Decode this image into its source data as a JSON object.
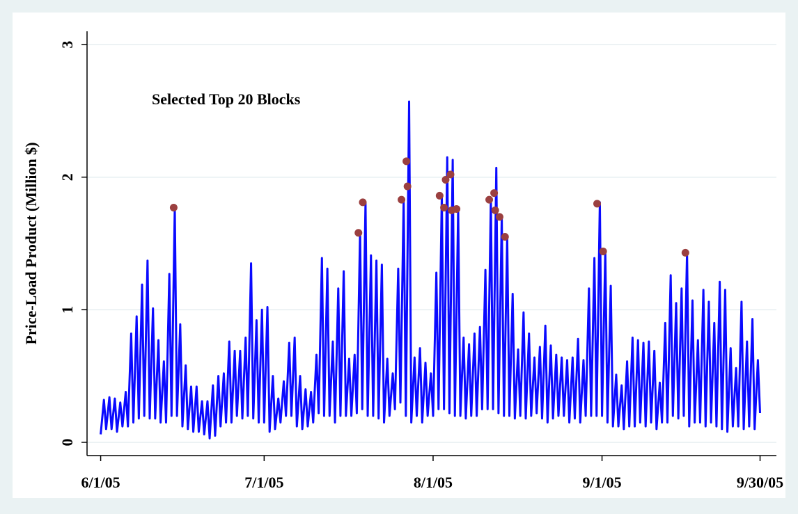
{
  "chart_data": {
    "type": "line",
    "ylabel": "Price-Load Product (Million $)",
    "annotation": "Selected Top 20 Blocks",
    "annotation_color": "#9b1c2e",
    "xlim": [
      -2.5,
      124
    ],
    "ylim": [
      -0.1,
      3.1
    ],
    "xticks": [
      {
        "value": 0,
        "label": "6/1/05"
      },
      {
        "value": 30,
        "label": "7/1/05"
      },
      {
        "value": 61,
        "label": "8/1/05"
      },
      {
        "value": 92,
        "label": "9/1/05"
      },
      {
        "value": 121,
        "label": "9/30/05"
      }
    ],
    "yticks": [
      0,
      1,
      2,
      3
    ],
    "grid": true,
    "line": {
      "color": "#0a0aff",
      "x": [
        0,
        0.6,
        1,
        1.6,
        2,
        2.6,
        3,
        3.6,
        4,
        4.6,
        5,
        5.6,
        6,
        6.6,
        7,
        7.6,
        8,
        8.6,
        9,
        9.6,
        10,
        10.6,
        11,
        11.6,
        12,
        12.6,
        13,
        13.6,
        14,
        14.6,
        15,
        15.6,
        16,
        16.6,
        17,
        17.6,
        18,
        18.6,
        19,
        19.6,
        20,
        20.6,
        21,
        21.6,
        22,
        22.6,
        23,
        23.6,
        24,
        24.6,
        25,
        25.6,
        26,
        26.6,
        27,
        27.6,
        28,
        28.6,
        29,
        29.6,
        30,
        30.6,
        31,
        31.6,
        32,
        32.6,
        33,
        33.6,
        34,
        34.6,
        35,
        35.6,
        36,
        36.6,
        37,
        37.6,
        38,
        38.6,
        39,
        39.6,
        40,
        40.6,
        41,
        41.6,
        42,
        42.6,
        43,
        43.6,
        44,
        44.6,
        45,
        45.6,
        46,
        46.6,
        47,
        47.6,
        48,
        48.6,
        49,
        49.6,
        50,
        50.6,
        51,
        51.6,
        52,
        52.6,
        53,
        53.6,
        54,
        54.6,
        55,
        55.6,
        56,
        56.6,
        57,
        57.6,
        58,
        58.6,
        59,
        59.6,
        60,
        60.6,
        61,
        61.6,
        62,
        62.6,
        63,
        63.6,
        64,
        64.6,
        65,
        65.6,
        66,
        66.6,
        67,
        67.6,
        68,
        68.6,
        69,
        69.6,
        70,
        70.6,
        71,
        71.6,
        72,
        72.6,
        73,
        73.6,
        74,
        74.6,
        75,
        75.6,
        76,
        76.6,
        77,
        77.6,
        78,
        78.6,
        79,
        79.6,
        80,
        80.6,
        81,
        81.6,
        82,
        82.6,
        83,
        83.6,
        84,
        84.6,
        85,
        85.6,
        86,
        86.6,
        87,
        87.6,
        88,
        88.6,
        89,
        89.6,
        90,
        90.6,
        91,
        91.6,
        92,
        92.6,
        93,
        93.6,
        94,
        94.6,
        95,
        95.6,
        96,
        96.6,
        97,
        97.6,
        98,
        98.6,
        99,
        99.6,
        100,
        100.6,
        101,
        101.6,
        102,
        102.6,
        103,
        103.6,
        104,
        104.6,
        105,
        105.6,
        106,
        106.6,
        107,
        107.6,
        108,
        108.6,
        109,
        109.6,
        110,
        110.6,
        111,
        111.6,
        112,
        112.6,
        113,
        113.6,
        114,
        114.6,
        115,
        115.6,
        116,
        116.6,
        117,
        117.6,
        118,
        118.6,
        119,
        119.6,
        120,
        120.6,
        121
      ],
      "values": [
        0.06,
        0.32,
        0.1,
        0.34,
        0.1,
        0.33,
        0.08,
        0.3,
        0.12,
        0.38,
        0.12,
        0.82,
        0.15,
        0.95,
        0.18,
        1.19,
        0.2,
        1.37,
        0.18,
        1.01,
        0.18,
        0.77,
        0.15,
        0.61,
        0.15,
        1.27,
        0.2,
        1.77,
        0.2,
        0.89,
        0.12,
        0.58,
        0.1,
        0.42,
        0.08,
        0.42,
        0.08,
        0.31,
        0.06,
        0.31,
        0.03,
        0.43,
        0.05,
        0.5,
        0.12,
        0.52,
        0.15,
        0.76,
        0.15,
        0.69,
        0.2,
        0.69,
        0.18,
        0.79,
        0.2,
        1.35,
        0.18,
        0.92,
        0.15,
        1.0,
        0.15,
        1.02,
        0.08,
        0.5,
        0.1,
        0.33,
        0.15,
        0.46,
        0.2,
        0.75,
        0.2,
        0.79,
        0.12,
        0.5,
        0.1,
        0.4,
        0.12,
        0.38,
        0.15,
        0.66,
        0.22,
        1.39,
        0.2,
        1.31,
        0.2,
        0.76,
        0.15,
        1.16,
        0.2,
        1.29,
        0.2,
        0.63,
        0.2,
        0.66,
        0.22,
        1.58,
        0.25,
        1.81,
        0.2,
        1.41,
        0.2,
        1.37,
        0.18,
        1.34,
        0.15,
        0.63,
        0.2,
        0.52,
        0.25,
        1.31,
        0.3,
        1.83,
        0.2,
        2.57,
        0.15,
        0.64,
        0.2,
        0.71,
        0.15,
        0.6,
        0.2,
        0.52,
        0.2,
        1.28,
        0.25,
        1.86,
        0.25,
        2.15,
        0.22,
        2.13,
        0.2,
        1.76,
        0.2,
        0.79,
        0.18,
        0.74,
        0.2,
        0.82,
        0.2,
        0.87,
        0.25,
        1.3,
        0.25,
        1.83,
        0.25,
        2.07,
        0.22,
        1.7,
        0.2,
        1.55,
        0.2,
        1.12,
        0.18,
        0.7,
        0.2,
        0.98,
        0.18,
        0.82,
        0.2,
        0.64,
        0.22,
        0.72,
        0.18,
        0.88,
        0.15,
        0.73,
        0.18,
        0.66,
        0.2,
        0.64,
        0.2,
        0.62,
        0.15,
        0.64,
        0.18,
        0.78,
        0.15,
        0.62,
        0.2,
        1.16,
        0.2,
        1.39,
        0.2,
        1.81,
        0.2,
        1.44,
        0.15,
        1.18,
        0.12,
        0.51,
        0.12,
        0.43,
        0.1,
        0.61,
        0.12,
        0.79,
        0.12,
        0.77,
        0.15,
        0.75,
        0.12,
        0.76,
        0.15,
        0.69,
        0.1,
        0.45,
        0.15,
        0.9,
        0.15,
        1.26,
        0.2,
        1.05,
        0.18,
        1.16,
        0.2,
        1.43,
        0.12,
        1.07,
        0.15,
        0.77,
        0.15,
        1.15,
        0.12,
        1.06,
        0.15,
        0.9,
        0.12,
        1.21,
        0.1,
        1.15,
        0.08,
        0.71,
        0.12,
        0.56,
        0.12,
        1.06,
        0.1,
        0.76,
        0.12,
        0.93,
        0.1,
        0.62,
        0.22
      ]
    },
    "markers": {
      "color": "#9b4040",
      "x": [
        13.4,
        47.3,
        48.1,
        55.2,
        56.1,
        56.3,
        62.2,
        63,
        63.3,
        64.2,
        64.4,
        65.3,
        71.3,
        72.2,
        72.4,
        73.2,
        74.2,
        91.1,
        92.2,
        107.3
      ],
      "values": [
        1.77,
        1.58,
        1.81,
        1.83,
        2.12,
        1.93,
        1.86,
        1.77,
        1.98,
        2.02,
        1.75,
        1.76,
        1.83,
        1.88,
        1.75,
        1.7,
        1.55,
        1.8,
        1.44,
        1.43
      ]
    }
  }
}
